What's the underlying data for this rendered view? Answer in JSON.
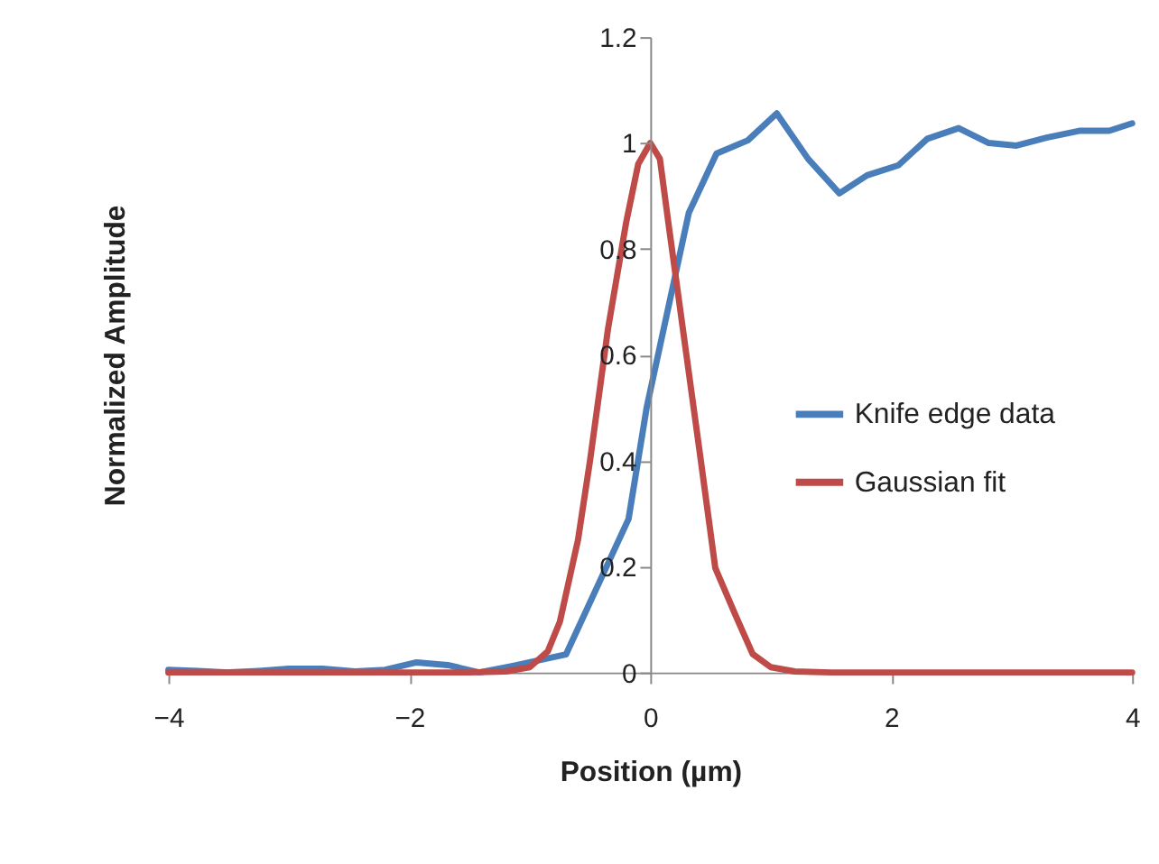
{
  "chart_data": {
    "type": "line",
    "xlabel": "Position (µm)",
    "ylabel": "Normalized Amplitude",
    "xlim": [
      -4,
      4
    ],
    "xticks": [
      -4,
      -2,
      0,
      2,
      4
    ],
    "ylim": [
      0,
      1.2
    ],
    "yticks": [
      0,
      0.2,
      0.4,
      0.6,
      0.8,
      1,
      1.2
    ],
    "grid": false,
    "legend": "right",
    "marker": "none",
    "line_style": "solid",
    "series": [
      {
        "name": "Knife edge data",
        "color": "#4a7ebb",
        "x": [
          -4,
          -3.75,
          -3.5,
          -3.25,
          -3,
          -2.72,
          -2.45,
          -2.2,
          -1.94,
          -1.68,
          -1.42,
          -1.15,
          -0.7,
          -0.18,
          -0.03,
          0.32,
          0.55,
          0.81,
          1.05,
          1.31,
          1.57,
          1.8,
          2.06,
          2.3,
          2.56,
          2.81,
          3.04,
          3.29,
          3.56,
          3.81,
          4
        ],
        "values": [
          0.005,
          0.003,
          0,
          0.003,
          0.007,
          0.007,
          0.002,
          0.005,
          0.019,
          0.014,
          0,
          0.012,
          0.034,
          0.29,
          0.5,
          0.868,
          0.98,
          1.005,
          1.056,
          0.97,
          0.905,
          0.939,
          0.958,
          1.008,
          1.028,
          1.0,
          0.995,
          1.01,
          1.023,
          1.023,
          1.037
        ]
      },
      {
        "name": "Gaussian fit",
        "color": "#be4b48",
        "x": [
          -4,
          -3.5,
          -3,
          -2.5,
          -2,
          -1.5,
          -1.2,
          -1,
          -0.85,
          -0.75,
          -0.6,
          -0.5,
          -0.35,
          -0.2,
          -0.1,
          0,
          0.08,
          0.15,
          0.3,
          0.42,
          0.54,
          0.71,
          0.85,
          1,
          1.2,
          1.5,
          2,
          2.5,
          3,
          3.5,
          4
        ],
        "values": [
          0,
          0,
          0,
          0,
          0,
          0,
          0.002,
          0.01,
          0.04,
          0.096,
          0.25,
          0.4,
          0.65,
          0.85,
          0.96,
          1,
          0.97,
          0.85,
          0.6,
          0.4,
          0.197,
          0.107,
          0.035,
          0.01,
          0.002,
          0,
          0,
          0,
          0,
          0,
          0
        ]
      }
    ]
  }
}
